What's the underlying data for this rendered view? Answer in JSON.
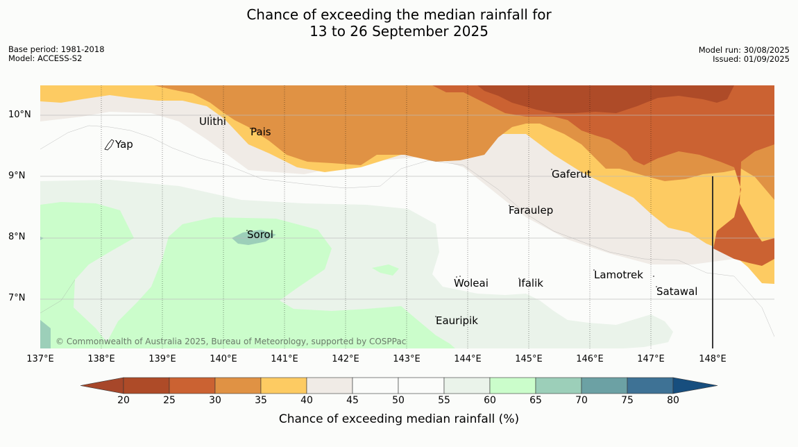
{
  "title_line1": "Chance of exceeding the median rainfall for",
  "title_line2": "13 to 26 September 2025",
  "base_period": "Base period: 1981-2018",
  "model": "Model: ACCESS-S2",
  "model_run": "Model run: 30/08/2025",
  "issued": "Issued: 01/09/2025",
  "lat_labels": [
    "10°N",
    "9°N",
    "8°N",
    "7°N"
  ],
  "lon_labels": [
    "137°E",
    "138°E",
    "139°E",
    "140°E",
    "141°E",
    "142°E",
    "143°E",
    "144°E",
    "145°E",
    "146°E",
    "147°E",
    "148°E"
  ],
  "places": [
    {
      "name": "Yap"
    },
    {
      "name": "Ulithi"
    },
    {
      "name": "Pais"
    },
    {
      "name": "Gaferut"
    },
    {
      "name": "Faraulep"
    },
    {
      "name": "Sorol"
    },
    {
      "name": "Woleai"
    },
    {
      "name": "Ifalik"
    },
    {
      "name": "Lamotrek"
    },
    {
      "name": "Satawal"
    },
    {
      "name": "Eauripik"
    }
  ],
  "copyright": "© Commonwealth of Australia 2025, Bureau of Meteorology, supported by COSPPac",
  "colorbar": {
    "title": "Chance of exceeding median rainfall (%)",
    "ticks": [
      "20",
      "25",
      "30",
      "35",
      "40",
      "45",
      "50",
      "55",
      "60",
      "65",
      "70",
      "75",
      "80"
    ],
    "colors": [
      "#a7472a",
      "#ae4b28",
      "#cb6232",
      "#e09244",
      "#fdcb62",
      "#f0ebe6",
      "#fbfcfa",
      "#fbfcfa",
      "#eaf3ea",
      "#cbfdcb",
      "#9ccfb9",
      "#6ca1a4",
      "#3e7295",
      "#174e7e"
    ]
  }
}
